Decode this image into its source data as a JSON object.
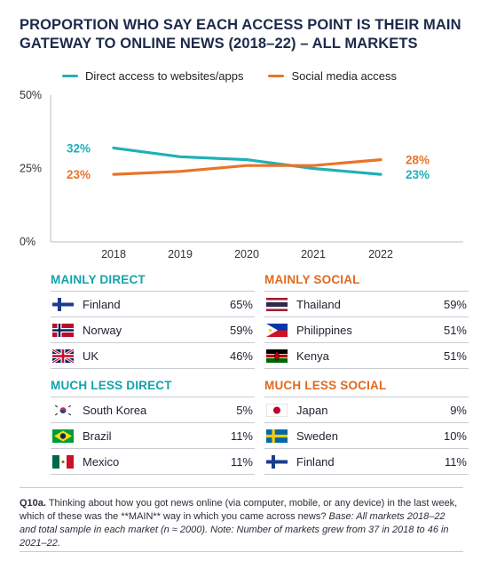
{
  "title": "PROPORTION WHO SAY EACH ACCESS POINT IS THEIR MAIN GATEWAY TO ONLINE NEWS (2018–22) – ALL MARKETS",
  "colors": {
    "direct": "#1fb0b8",
    "social": "#e8742a",
    "direct_head": "#12a3ad",
    "social_head": "#e06a20",
    "axis": "#b9bcc6"
  },
  "chart_data": {
    "type": "line",
    "title": "PROPORTION WHO SAY EACH ACCESS POINT IS THEIR MAIN GATEWAY TO ONLINE NEWS (2018–22) – ALL MARKETS",
    "x": [
      "2018",
      "2019",
      "2020",
      "2021",
      "2022"
    ],
    "ylim": [
      0,
      50
    ],
    "yticks": [
      "0%",
      "25%",
      "50%"
    ],
    "legend_position": "top",
    "grid": false,
    "series": [
      {
        "name": "Direct access to websites/apps",
        "color": "#1fb0b8",
        "values": [
          32,
          29,
          28,
          25,
          23
        ],
        "start_label": "32%",
        "end_label": "23%"
      },
      {
        "name": "Social media access",
        "color": "#e8742a",
        "values": [
          23,
          24,
          26,
          26,
          28
        ],
        "start_label": "23%",
        "end_label": "28%"
      }
    ]
  },
  "panels": {
    "mainly_direct": {
      "heading": "MAINLY DIRECT",
      "rows": [
        {
          "country": "Finland",
          "value": "65%",
          "flag": "finland"
        },
        {
          "country": "Norway",
          "value": "59%",
          "flag": "norway"
        },
        {
          "country": "UK",
          "value": "46%",
          "flag": "uk"
        }
      ]
    },
    "mainly_social": {
      "heading": "MAINLY SOCIAL",
      "rows": [
        {
          "country": "Thailand",
          "value": "59%",
          "flag": "thailand"
        },
        {
          "country": "Philippines",
          "value": "51%",
          "flag": "philippines"
        },
        {
          "country": "Kenya",
          "value": "51%",
          "flag": "kenya"
        }
      ]
    },
    "much_less_direct": {
      "heading": "MUCH LESS DIRECT",
      "rows": [
        {
          "country": "South Korea",
          "value": "5%",
          "flag": "south-korea"
        },
        {
          "country": "Brazil",
          "value": "11%",
          "flag": "brazil"
        },
        {
          "country": "Mexico",
          "value": "11%",
          "flag": "mexico"
        }
      ]
    },
    "much_less_social": {
      "heading": "MUCH LESS SOCIAL",
      "rows": [
        {
          "country": "Japan",
          "value": "9%",
          "flag": "japan"
        },
        {
          "country": "Sweden",
          "value": "10%",
          "flag": "sweden"
        },
        {
          "country": "Finland",
          "value": "11%",
          "flag": "finland"
        }
      ]
    }
  },
  "note": {
    "label": "Q10a.",
    "question": " Thinking about how you got news online (via computer, mobile, or any device) in the last week, which of these was the **MAIN** way in which you came across news? ",
    "base": "Base: All markets 2018–22 and total sample in each market (n ≈ 2000). Note: Number of markets grew from 37 in 2018 to 46 in 2021–22."
  }
}
